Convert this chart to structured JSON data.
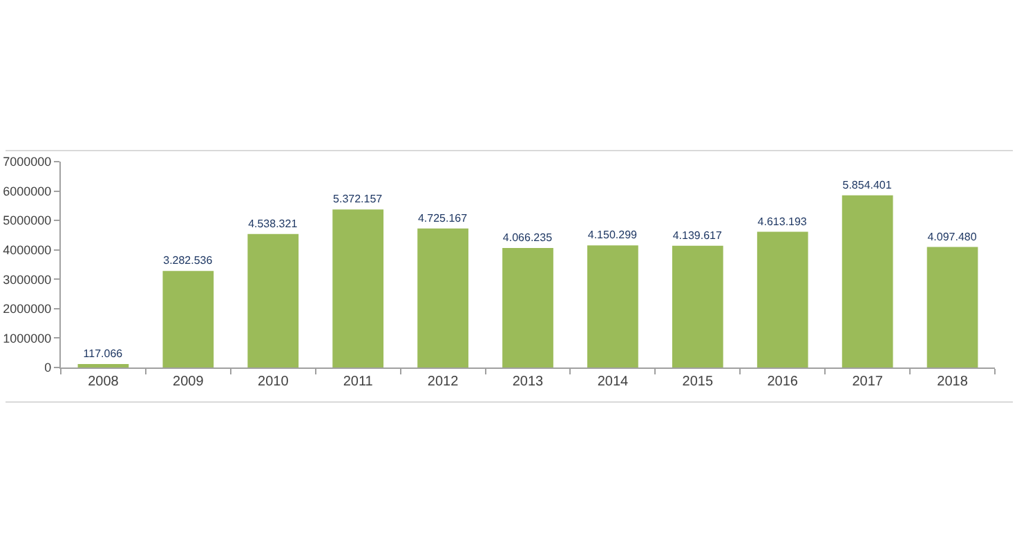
{
  "chart_data": {
    "type": "bar",
    "categories": [
      "2008",
      "2009",
      "2010",
      "2011",
      "2012",
      "2013",
      "2014",
      "2015",
      "2016",
      "2017",
      "2018"
    ],
    "values": [
      117066,
      3282536,
      4538321,
      5372157,
      4725167,
      4066235,
      4150299,
      4139617,
      4613193,
      5854401,
      4097480
    ],
    "value_labels": [
      "117.066",
      "3.282.536",
      "4.538.321",
      "5.372.157",
      "4.725.167",
      "4.066.235",
      "4.150.299",
      "4.139.617",
      "4.613.193",
      "5.854.401",
      "4.097.480"
    ],
    "color": "#9bbb59",
    "ylim": [
      0,
      7000000
    ],
    "yticks": [
      0,
      1000000,
      2000000,
      3000000,
      4000000,
      5000000,
      6000000,
      7000000
    ]
  }
}
